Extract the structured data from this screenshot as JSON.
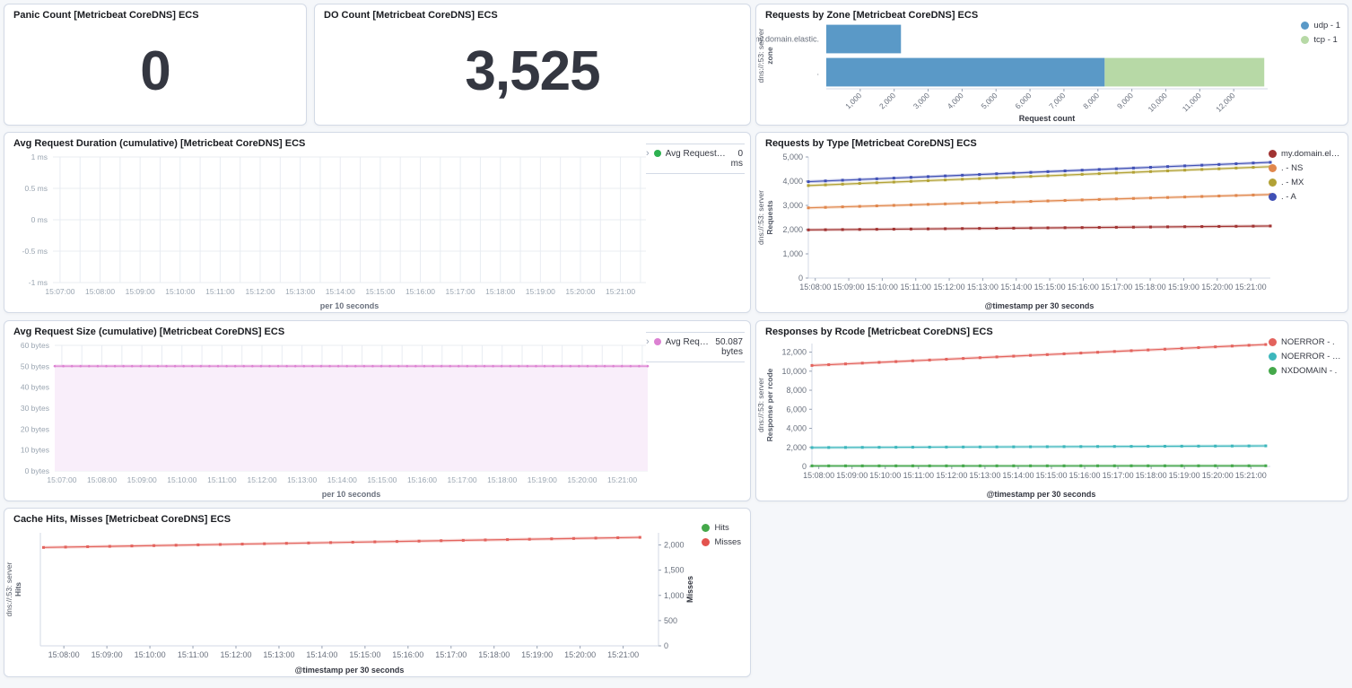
{
  "panels": {
    "panic_count": {
      "title": "Panic Count [Metricbeat CoreDNS] ECS",
      "value": "0"
    },
    "do_count": {
      "title": "DO Count [Metricbeat CoreDNS] ECS",
      "value": "3,525"
    },
    "requests_by_zone": {
      "title": "Requests by Zone [Metricbeat CoreDNS] ECS",
      "legend": [
        {
          "label": "udp - 1",
          "color": "#5a99c7"
        },
        {
          "label": "tcp - 1",
          "color": "#b7d9a6"
        }
      ]
    },
    "avg_request_duration": {
      "title": "Avg Request Duration (cumulative) [Metricbeat CoreDNS] ECS",
      "legend": {
        "chevron": "›",
        "name": "Avg Request Dura...",
        "value": "0",
        "unit": "ms",
        "color": "#2eb150"
      }
    },
    "requests_by_type": {
      "title": "Requests by Type [Metricbeat CoreDNS] ECS",
      "legend": [
        {
          "label": "my.domain.elastic. - A",
          "color": "#a13332"
        },
        {
          "label": ". - NS",
          "color": "#e0874d"
        },
        {
          "label": ". - MX",
          "color": "#b2a236"
        },
        {
          "label": ". - A",
          "color": "#4050b5"
        }
      ]
    },
    "avg_request_size": {
      "title": "Avg Request Size (cumulative) [Metricbeat CoreDNS] ECS",
      "legend": {
        "chevron": "›",
        "name": "Avg Request ...",
        "value": "50.087",
        "unit": "bytes",
        "color": "#dc81d2"
      }
    },
    "responses_by_rcode": {
      "title": "Responses by Rcode [Metricbeat CoreDNS] ECS",
      "legend": [
        {
          "label": "NOERROR - .",
          "color": "#e3635d"
        },
        {
          "label": "NOERROR - my.dom...",
          "color": "#3db7bd"
        },
        {
          "label": "NXDOMAIN - .",
          "color": "#44a84a"
        }
      ]
    },
    "cache_hits_misses": {
      "title": "Cache Hits, Misses [Metricbeat CoreDNS] ECS",
      "legend": [
        {
          "label": "Hits",
          "color": "#44a84a"
        },
        {
          "label": "Misses",
          "color": "#e3534e"
        }
      ]
    }
  },
  "chart_data": [
    {
      "id": "requests_by_zone",
      "type": "bar",
      "orientation": "horizontal",
      "categories": [
        "my.domain.elastic.",
        "."
      ],
      "series": [
        {
          "name": "udp - 1",
          "color": "#5a99c7",
          "values": [
            2200,
            8200
          ]
        },
        {
          "name": "tcp - 1",
          "color": "#b7d9a6",
          "values": [
            0,
            4700
          ]
        }
      ],
      "xmax": 13000,
      "xticks": [
        "1,000",
        "2,000",
        "3,000",
        "4,000",
        "5,000",
        "6,000",
        "7,000",
        "8,000",
        "9,000",
        "10,000",
        "11,000",
        "12,000"
      ],
      "xlabel": "Request count",
      "ylabel_lines": [
        "dns://:53: server",
        "zone"
      ],
      "legend_position": "top-right"
    },
    {
      "id": "avg_request_duration",
      "type": "line",
      "ylim": [
        -1,
        1
      ],
      "yticks": [
        {
          "label": "1 ms",
          "value": 1
        },
        {
          "label": "0.5 ms",
          "value": 0.5
        },
        {
          "label": "0 ms",
          "value": 0
        },
        {
          "label": "-0.5 ms",
          "value": -0.5
        },
        {
          "label": "-1 ms",
          "value": -1
        }
      ],
      "xticks": [
        "15:07:00",
        "15:08:00",
        "15:09:00",
        "15:10:00",
        "15:11:00",
        "15:12:00",
        "15:13:00",
        "15:14:00",
        "15:15:00",
        "15:16:00",
        "15:17:00",
        "15:18:00",
        "15:19:00",
        "15:20:00",
        "15:21:00"
      ],
      "xlabel": "per 10 seconds",
      "grid": "both",
      "series": [
        {
          "name": "Avg Request Duration",
          "color": "#2eb150",
          "values": [
            0,
            0
          ],
          "visible": false
        }
      ]
    },
    {
      "id": "requests_by_type",
      "type": "line",
      "ylim": [
        0,
        5000
      ],
      "yticks": [
        {
          "label": "5,000",
          "value": 5000
        },
        {
          "label": "4,000",
          "value": 4000
        },
        {
          "label": "3,000",
          "value": 3000
        },
        {
          "label": "2,000",
          "value": 2000
        },
        {
          "label": "1,000",
          "value": 1000
        },
        {
          "label": "0",
          "value": 0
        }
      ],
      "xticks": [
        "15:08:00",
        "15:09:00",
        "15:10:00",
        "15:11:00",
        "15:12:00",
        "15:13:00",
        "15:14:00",
        "15:15:00",
        "15:16:00",
        "15:17:00",
        "15:18:00",
        "15:19:00",
        "15:20:00",
        "15:21:00"
      ],
      "xlabel": "@timestamp per 30 seconds",
      "ylabel_lines": [
        "dns://:53: server",
        "Requests"
      ],
      "grid": "none",
      "series": [
        {
          "name": ". - A",
          "color": "#4050b5",
          "values": [
            3980,
            4780
          ]
        },
        {
          "name": ". - MX",
          "color": "#b2a236",
          "values": [
            3820,
            4600
          ]
        },
        {
          "name": ". - NS",
          "color": "#e0874d",
          "values": [
            2900,
            3450
          ]
        },
        {
          "name": "my.domain.elastic. - A",
          "color": "#a13332",
          "values": [
            1990,
            2150
          ]
        }
      ]
    },
    {
      "id": "avg_request_size",
      "type": "area",
      "ylim": [
        0,
        60
      ],
      "yticks": [
        {
          "label": "60 bytes",
          "value": 60
        },
        {
          "label": "50 bytes",
          "value": 50
        },
        {
          "label": "40 bytes",
          "value": 40
        },
        {
          "label": "30 bytes",
          "value": 30
        },
        {
          "label": "20 bytes",
          "value": 20
        },
        {
          "label": "10 bytes",
          "value": 10
        },
        {
          "label": "0 bytes",
          "value": 0
        }
      ],
      "xticks": [
        "15:07:00",
        "15:08:00",
        "15:09:00",
        "15:10:00",
        "15:11:00",
        "15:12:00",
        "15:13:00",
        "15:14:00",
        "15:15:00",
        "15:16:00",
        "15:17:00",
        "15:18:00",
        "15:19:00",
        "15:20:00",
        "15:21:00"
      ],
      "xlabel": "per 10 seconds",
      "grid": "both",
      "series": [
        {
          "name": "Avg Request Size",
          "color": "#dc81d2",
          "fill": "#f9eefa",
          "values": [
            50.087,
            50.087
          ]
        }
      ]
    },
    {
      "id": "responses_by_rcode",
      "type": "line",
      "ylim": [
        0,
        12900
      ],
      "yticks": [
        {
          "label": "12,000",
          "value": 12000
        },
        {
          "label": "10,000",
          "value": 10000
        },
        {
          "label": "8,000",
          "value": 8000
        },
        {
          "label": "6,000",
          "value": 6000
        },
        {
          "label": "4,000",
          "value": 4000
        },
        {
          "label": "2,000",
          "value": 2000
        },
        {
          "label": "0",
          "value": 0
        }
      ],
      "xticks": [
        "15:08:00",
        "15:09:00",
        "15:10:00",
        "15:11:00",
        "15:12:00",
        "15:13:00",
        "15:14:00",
        "15:15:00",
        "15:16:00",
        "15:17:00",
        "15:18:00",
        "15:19:00",
        "15:20:00",
        "15:21:00"
      ],
      "xlabel": "@timestamp per 30 seconds",
      "ylabel_lines": [
        "dns://:53: server",
        "Response per rcode"
      ],
      "grid": "none",
      "series": [
        {
          "name": "NOERROR - .",
          "color": "#e3635d",
          "values": [
            10600,
            12800
          ]
        },
        {
          "name": "NOERROR - my.domain.elastic.",
          "color": "#3db7bd",
          "values": [
            1980,
            2160
          ]
        },
        {
          "name": "NXDOMAIN - .",
          "color": "#44a84a",
          "values": [
            60,
            70
          ]
        }
      ]
    },
    {
      "id": "cache_hits_misses",
      "type": "line",
      "ylim": [
        0,
        2240
      ],
      "yticks": [],
      "right_axis": {
        "label": "Misses",
        "ticks": [
          {
            "label": "2,000",
            "value": 2000
          },
          {
            "label": "1,500",
            "value": 1500
          },
          {
            "label": "1,000",
            "value": 1000
          },
          {
            "label": "500",
            "value": 500
          },
          {
            "label": "0",
            "value": 0
          }
        ]
      },
      "xticks": [
        "15:08:00",
        "15:09:00",
        "15:10:00",
        "15:11:00",
        "15:12:00",
        "15:13:00",
        "15:14:00",
        "15:15:00",
        "15:16:00",
        "15:17:00",
        "15:18:00",
        "15:19:00",
        "15:20:00",
        "15:21:00"
      ],
      "xlabel": "@timestamp per 30 seconds",
      "ylabel_lines": [
        "dns://:53: server",
        "Hits"
      ],
      "grid": "none",
      "series": [
        {
          "name": "Misses",
          "color": "#e3635d",
          "values": [
            1950,
            2150
          ]
        },
        {
          "name": "Hits",
          "color": "#44a84a",
          "values": [
            0,
            0
          ],
          "visible": false
        }
      ]
    }
  ]
}
